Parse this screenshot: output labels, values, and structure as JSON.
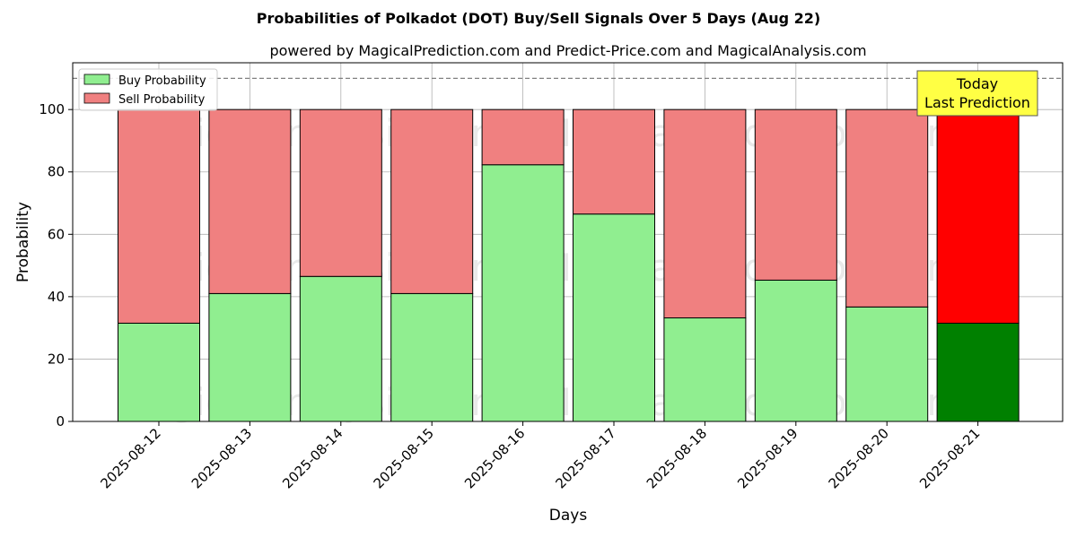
{
  "chart_data": {
    "type": "bar",
    "stacked": true,
    "title": "Probabilities of Polkadot (DOT) Buy/Sell Signals Over 5 Days (Aug 22)",
    "subtitle": "powered by MagicalPrediction.com and Predict-Price.com and MagicalAnalysis.com",
    "xlabel": "Days",
    "ylabel": "Probability",
    "ylim": [
      0,
      115
    ],
    "yticks": [
      0,
      20,
      40,
      60,
      80,
      100
    ],
    "grid": true,
    "legend_position": "top-left",
    "reference_line": 110,
    "categories": [
      "2025-08-12",
      "2025-08-13",
      "2025-08-14",
      "2025-08-15",
      "2025-08-16",
      "2025-08-17",
      "2025-08-18",
      "2025-08-19",
      "2025-08-20",
      "2025-08-21"
    ],
    "series": [
      {
        "name": "Buy Probability",
        "values": [
          31.5,
          41,
          46.5,
          41,
          82.3,
          66.5,
          33.2,
          45.3,
          36.7,
          31.5
        ]
      },
      {
        "name": "Sell Probability",
        "values": [
          68.5,
          59,
          53.5,
          59,
          17.7,
          33.5,
          66.8,
          54.7,
          63.3,
          68.5
        ]
      }
    ],
    "colors": {
      "buy": "#90EE90",
      "sell": "#F08080",
      "buy_highlight": "#008000",
      "sell_highlight": "#FF0000",
      "annotation_bg": "#FFFF44"
    },
    "highlight_category": "2025-08-21",
    "annotation": {
      "line1": "Today",
      "line2": "Last Prediction"
    },
    "watermarks": [
      "MagicalAnalysis.com",
      "MagicalPrediction.com"
    ]
  }
}
